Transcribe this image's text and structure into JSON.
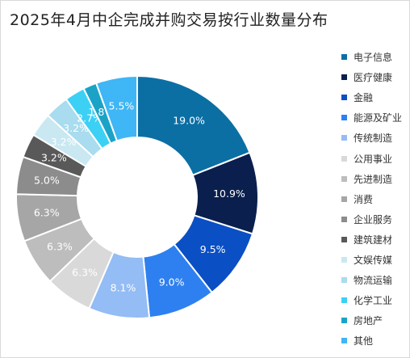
{
  "title": "2025年4月中企完成并购交易按行业数量分布",
  "chart_data": {
    "type": "pie",
    "donut": true,
    "title": "2025年4月中企完成并购交易按行业数量分布",
    "legend_position": "right",
    "categories": [
      "电子信息",
      "医疗健康",
      "金融",
      "能源及矿业",
      "传统制造",
      "公用事业",
      "先进制造",
      "消费",
      "企业服务",
      "建筑建材",
      "文娱传媒",
      "物流运输",
      "化学工业",
      "房地产",
      "其他"
    ],
    "values": [
      19.0,
      10.9,
      9.5,
      9.0,
      8.1,
      6.3,
      6.3,
      6.3,
      5.0,
      3.2,
      3.2,
      3.2,
      2.7,
      1.8,
      5.5
    ],
    "labels": [
      "19.0%",
      "10.9%",
      "9.5%",
      "9.0%",
      "8.1%",
      "6.3%",
      "6.3%",
      "6.3%",
      "5.0%",
      "3.2%",
      "3.2%",
      "3.2%",
      "2.7%",
      "1.8%",
      "5.5%"
    ],
    "colors": [
      "#0b6fa4",
      "#0a1f4d",
      "#0a4fc4",
      "#2e80f0",
      "#94bcf5",
      "#d9d9d9",
      "#bdbdbd",
      "#a6a6a6",
      "#8c8c8c",
      "#595959",
      "#c9e8f2",
      "#a8dcee",
      "#3dd0f5",
      "#1ba3c7",
      "#3fb6f5"
    ]
  }
}
